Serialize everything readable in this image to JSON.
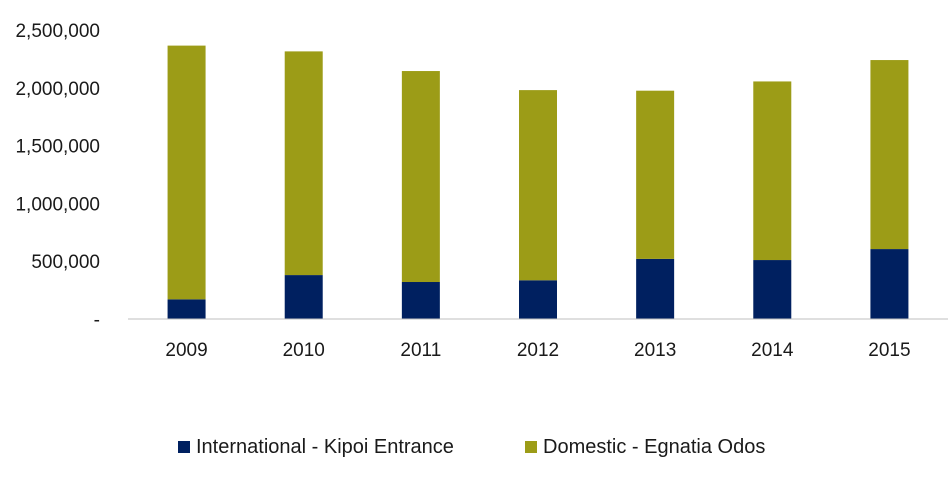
{
  "chart_data": {
    "type": "bar",
    "stacked": true,
    "categories": [
      "2009",
      "2010",
      "2011",
      "2012",
      "2013",
      "2014",
      "2015"
    ],
    "series": [
      {
        "name": "International - Kipoi Entrance",
        "color": "#002060",
        "values": [
          170000,
          380000,
          320000,
          335000,
          520000,
          510000,
          605000
        ]
      },
      {
        "name": "Domestic - Egnatia Odos",
        "color": "#9c9c17",
        "values": [
          2195000,
          1935000,
          1825000,
          1645000,
          1455000,
          1545000,
          1635000
        ]
      }
    ],
    "ylim": [
      0,
      2500000
    ],
    "yticks": [
      0,
      500000,
      1000000,
      1500000,
      2000000,
      2500000
    ],
    "ytick_labels": [
      "-",
      "500,000",
      "1,000,000",
      "1,500,000",
      "2,000,000",
      "2,500,000"
    ],
    "xlabel": "",
    "ylabel": "",
    "title": "",
    "grid": false,
    "legend_position": "bottom"
  }
}
